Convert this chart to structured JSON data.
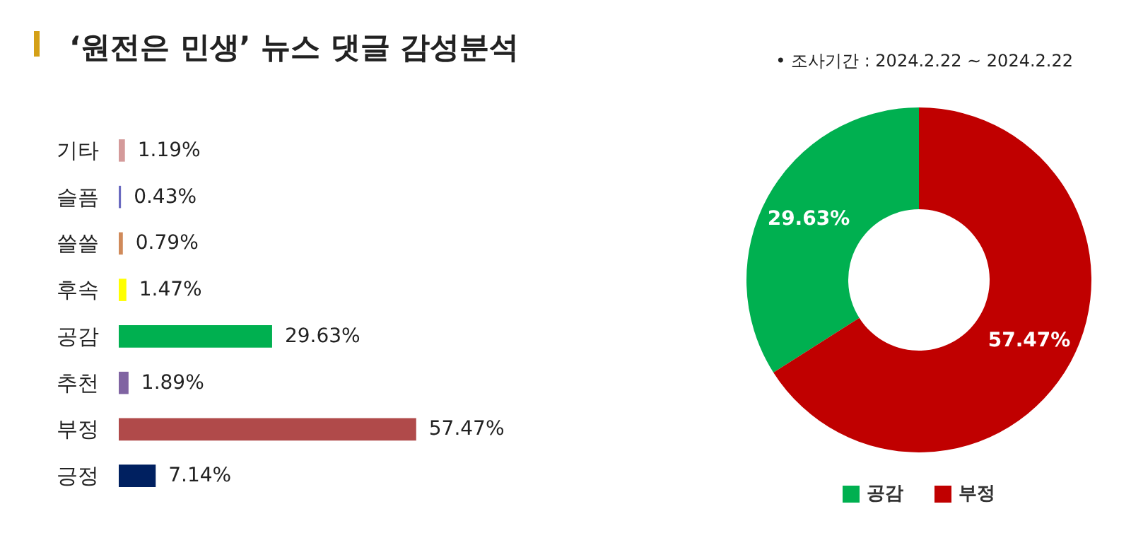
{
  "chart_data": [
    {
      "type": "bar",
      "orientation": "horizontal",
      "title": "‘원전은 민생’ 뉴스 댓글 감성분석",
      "categories": [
        "기타",
        "슬픔",
        "쓸쓸",
        "후속",
        "공감",
        "추천",
        "부정",
        "긍정"
      ],
      "values": [
        1.19,
        0.43,
        0.79,
        1.47,
        29.63,
        1.89,
        57.47,
        7.14
      ],
      "colors": [
        "#d49a9a",
        "#6a6ac0",
        "#d08a5a",
        "#ffff00",
        "#00b050",
        "#8064a2",
        "#b04a4a",
        "#002060"
      ],
      "value_labels": [
        "1.19%",
        "0.43%",
        "0.79%",
        "1.47%",
        "29.63%",
        "1.89%",
        "57.47%",
        "7.14%"
      ]
    },
    {
      "type": "donut",
      "subtitle": "• 조사기간 : 2024.2.22 ~ 2024.2.22",
      "categories": [
        "공감",
        "부정"
      ],
      "values": [
        29.63,
        57.47
      ],
      "colors": [
        "#00b050",
        "#c00000"
      ],
      "value_labels": [
        "29.63%",
        "57.47%"
      ],
      "legend": "bottom"
    }
  ]
}
